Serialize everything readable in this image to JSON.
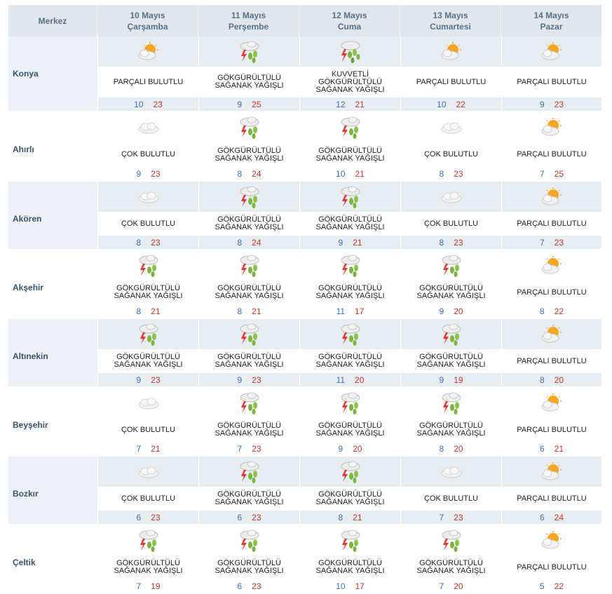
{
  "header": {
    "center_label": "Merkez",
    "days": [
      {
        "date": "10 Mayıs",
        "weekday": "Çarşamba"
      },
      {
        "date": "11 Mayıs",
        "weekday": "Perşembe"
      },
      {
        "date": "12 Mayıs",
        "weekday": "Cuma"
      },
      {
        "date": "13 Mayıs",
        "weekday": "Cumartesi"
      },
      {
        "date": "14 Mayıs",
        "weekday": "Pazar"
      }
    ]
  },
  "conditions": {
    "partly": "PARÇALI BULUTLU",
    "cloudy": "ÇOK BULUTLU",
    "storm": "GÖKGÜRÜLTÜLÜ SAĞANAK YAĞIŞLI",
    "heavy": "KUVVETLİ GÖKGÜRÜLTÜLÜ SAĞANAK YAĞIŞLI"
  },
  "icons": {
    "partly": "partly-cloudy-icon",
    "cloudy": "cloudy-icon",
    "storm": "thunderstorm-icon",
    "heavy": "heavy-thunderstorm-icon"
  },
  "colors": {
    "low": "#3b6fb3",
    "high": "#c0392b"
  },
  "rows": [
    {
      "city": "Konya",
      "days": [
        {
          "cond": "partly",
          "lo": "10",
          "hi": "23"
        },
        {
          "cond": "storm",
          "lo": "9",
          "hi": "25"
        },
        {
          "cond": "heavy",
          "lo": "12",
          "hi": "21"
        },
        {
          "cond": "partly",
          "lo": "10",
          "hi": "22"
        },
        {
          "cond": "partly",
          "lo": "9",
          "hi": "23"
        }
      ]
    },
    {
      "city": "Ahırlı",
      "days": [
        {
          "cond": "cloudy",
          "lo": "9",
          "hi": "23"
        },
        {
          "cond": "storm",
          "lo": "8",
          "hi": "24"
        },
        {
          "cond": "storm",
          "lo": "10",
          "hi": "21"
        },
        {
          "cond": "cloudy",
          "lo": "8",
          "hi": "23"
        },
        {
          "cond": "partly",
          "lo": "7",
          "hi": "25"
        }
      ]
    },
    {
      "city": "Akören",
      "days": [
        {
          "cond": "cloudy",
          "lo": "8",
          "hi": "23"
        },
        {
          "cond": "storm",
          "lo": "8",
          "hi": "24"
        },
        {
          "cond": "storm",
          "lo": "9",
          "hi": "21"
        },
        {
          "cond": "cloudy",
          "lo": "8",
          "hi": "23"
        },
        {
          "cond": "partly",
          "lo": "7",
          "hi": "23"
        }
      ]
    },
    {
      "city": "Akşehir",
      "days": [
        {
          "cond": "storm",
          "lo": "8",
          "hi": "21"
        },
        {
          "cond": "storm",
          "lo": "8",
          "hi": "21"
        },
        {
          "cond": "storm",
          "lo": "11",
          "hi": "17"
        },
        {
          "cond": "storm",
          "lo": "9",
          "hi": "20"
        },
        {
          "cond": "partly",
          "lo": "8",
          "hi": "22"
        }
      ]
    },
    {
      "city": "Altınekin",
      "days": [
        {
          "cond": "storm",
          "lo": "9",
          "hi": "23"
        },
        {
          "cond": "storm",
          "lo": "9",
          "hi": "23"
        },
        {
          "cond": "storm",
          "lo": "11",
          "hi": "20"
        },
        {
          "cond": "storm",
          "lo": "9",
          "hi": "19"
        },
        {
          "cond": "partly",
          "lo": "8",
          "hi": "20"
        }
      ]
    },
    {
      "city": "Beyşehir",
      "days": [
        {
          "cond": "cloudy",
          "lo": "7",
          "hi": "21"
        },
        {
          "cond": "storm",
          "lo": "7",
          "hi": "23"
        },
        {
          "cond": "storm",
          "lo": "9",
          "hi": "20"
        },
        {
          "cond": "storm",
          "lo": "8",
          "hi": "20"
        },
        {
          "cond": "partly",
          "lo": "6",
          "hi": "21"
        }
      ]
    },
    {
      "city": "Bozkır",
      "days": [
        {
          "cond": "cloudy",
          "lo": "6",
          "hi": "23"
        },
        {
          "cond": "storm",
          "lo": "6",
          "hi": "23"
        },
        {
          "cond": "storm",
          "lo": "8",
          "hi": "21"
        },
        {
          "cond": "cloudy",
          "lo": "7",
          "hi": "23"
        },
        {
          "cond": "partly",
          "lo": "6",
          "hi": "24"
        }
      ]
    },
    {
      "city": "Çeltik",
      "days": [
        {
          "cond": "storm",
          "lo": "7",
          "hi": "19"
        },
        {
          "cond": "storm",
          "lo": "6",
          "hi": "23"
        },
        {
          "cond": "storm",
          "lo": "10",
          "hi": "17"
        },
        {
          "cond": "storm",
          "lo": "7",
          "hi": "20"
        },
        {
          "cond": "partly",
          "lo": "5",
          "hi": "22"
        }
      ]
    }
  ]
}
